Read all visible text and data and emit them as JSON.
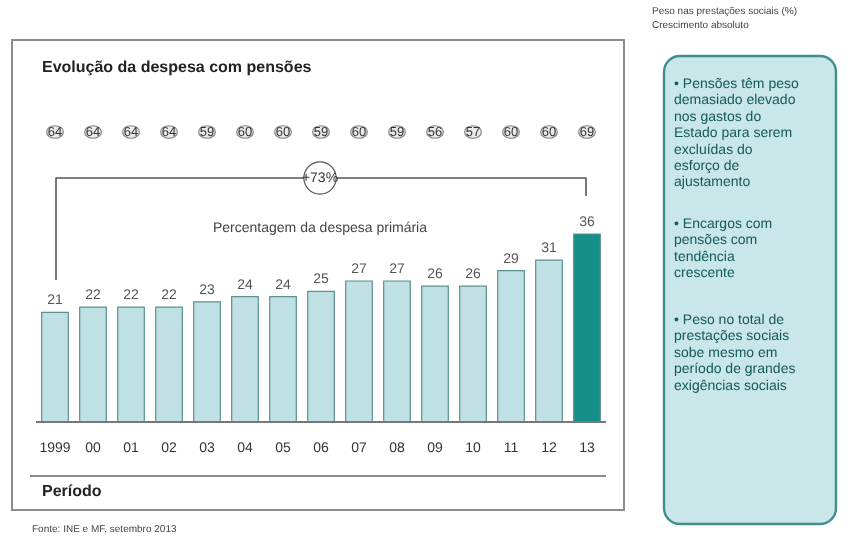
{
  "chart_data": {
    "type": "bar",
    "title": "Evolução da despesa com pensões",
    "xlabel": "Período",
    "categories": [
      "1999",
      "00",
      "01",
      "02",
      "03",
      "04",
      "05",
      "06",
      "07",
      "08",
      "09",
      "10",
      "11",
      "12",
      "13"
    ],
    "values": [
      21,
      22,
      22,
      22,
      23,
      24,
      24,
      25,
      27,
      27,
      26,
      26,
      29,
      31,
      36
    ],
    "colors": [
      "#bfe1e4",
      "#bfe1e4",
      "#bfe1e4",
      "#bfe1e4",
      "#bfe1e4",
      "#bfe1e4",
      "#bfe1e4",
      "#bfe1e4",
      "#bfe1e4",
      "#bfe1e4",
      "#bfe1e4",
      "#bfe1e4",
      "#bfe1e4",
      "#bfe1e4",
      "#178f89"
    ],
    "data_labels": true,
    "annotations": [
      "+73%",
      "Percentagem da despesa primária",
      "Fonte: INE e MF, setembro 2013",
      "Peso nas prestações sociais (%)",
      "Crescimento absoluto",
      "• Pensões têm peso demasiado elevado nos gastos do Estado para serem excluídas do esforço de ajustamento",
      "• Encargos com pensões com tendência crescente",
      "• Peso no total de prestações sociais sobe mesmo em período de grandes exigências sociais",
      "64",
      "64",
      "64",
      "64",
      "59",
      "60",
      "60",
      "59",
      "60",
      "59",
      "56",
      "57",
      "60",
      "60",
      "69"
    ]
  }
}
